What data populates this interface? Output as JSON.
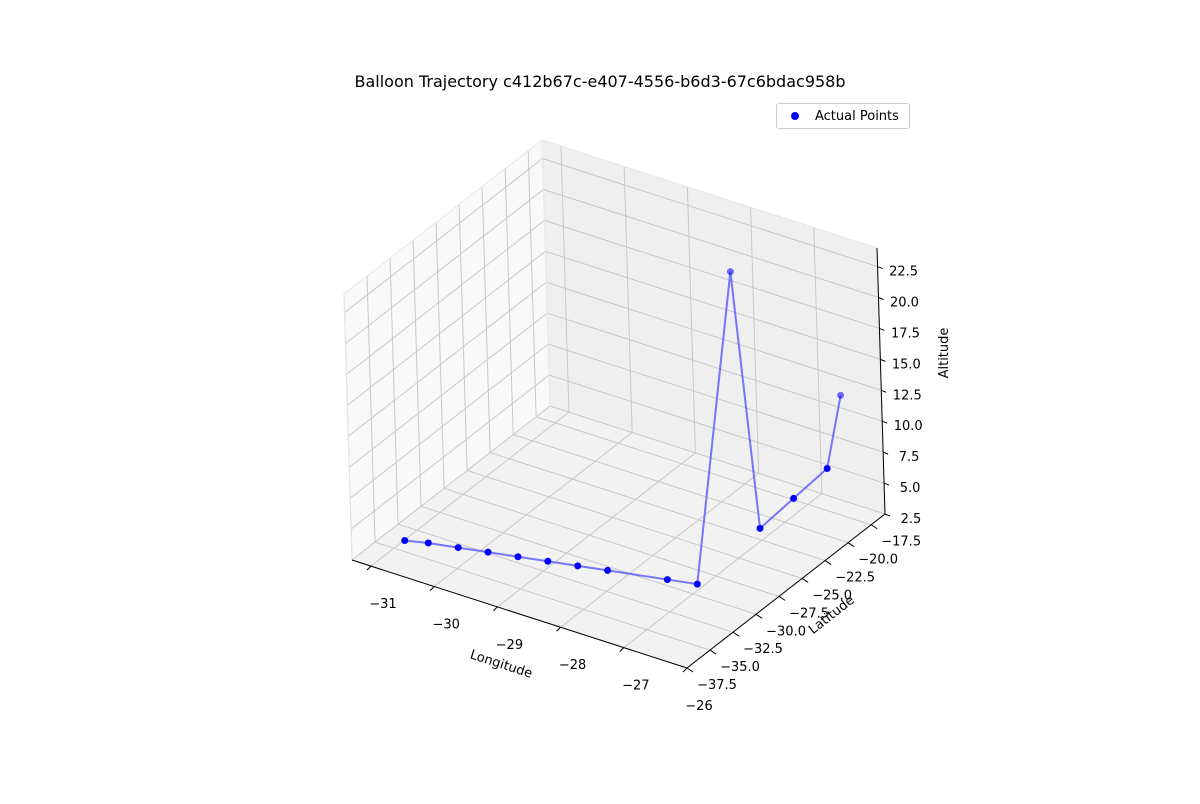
{
  "chart_data": {
    "type": "scatter",
    "title": "Balloon Trajectory c412b67c-e407-4556-b6d3-67c6bdac958b",
    "xlabel": "Longitude",
    "ylabel": "Latitude",
    "zlabel": "Altitude",
    "xlim": [
      -31.3,
      -26
    ],
    "ylim": [
      -37.5,
      -16
    ],
    "zlim": [
      2.5,
      24
    ],
    "x_ticks": [
      -31,
      -30,
      -29,
      -28,
      -27,
      -26
    ],
    "y_ticks": [
      -37.5,
      -35.0,
      -32.5,
      -30.0,
      -27.5,
      -25.0,
      -22.5,
      -20.0,
      -17.5
    ],
    "z_ticks": [
      2.5,
      5.0,
      7.5,
      10.0,
      12.5,
      15.0,
      17.5,
      20.0,
      22.5
    ],
    "grid": true,
    "legend_position": "top-right",
    "colors": {
      "points": "#0000ff",
      "line": "#5555ff"
    },
    "series": [
      {
        "name": "Actual Points",
        "points": [
          {
            "x": -30.9,
            "y": -34.5,
            "z": 3.0
          },
          {
            "x": -30.6,
            "y": -34.0,
            "z": 3.0
          },
          {
            "x": -30.2,
            "y": -33.5,
            "z": 3.0
          },
          {
            "x": -29.8,
            "y": -33.0,
            "z": 3.0
          },
          {
            "x": -29.4,
            "y": -32.5,
            "z": 3.0
          },
          {
            "x": -29.0,
            "y": -32.0,
            "z": 3.0
          },
          {
            "x": -28.6,
            "y": -31.5,
            "z": 3.0
          },
          {
            "x": -28.2,
            "y": -31.0,
            "z": 3.0
          },
          {
            "x": -27.4,
            "y": -30.0,
            "z": 3.0
          },
          {
            "x": -27.0,
            "y": -29.5,
            "z": 3.0
          },
          {
            "x": -27.3,
            "y": -23.0,
            "z": 24.0
          },
          {
            "x": -27.1,
            "y": -22.0,
            "z": 3.0
          },
          {
            "x": -26.7,
            "y": -21.0,
            "z": 5.5
          },
          {
            "x": -26.3,
            "y": -20.0,
            "z": 8.0
          },
          {
            "x": -26.2,
            "y": -19.0,
            "z": 13.5
          }
        ]
      }
    ]
  }
}
